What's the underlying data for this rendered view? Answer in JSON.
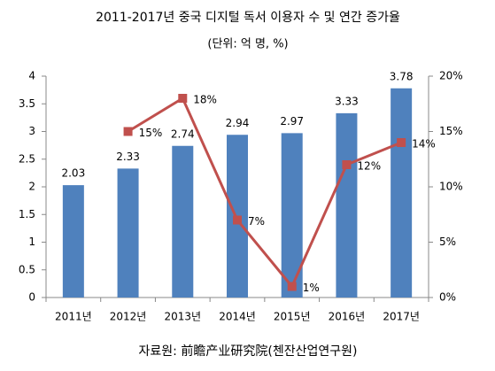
{
  "chart_data": {
    "type": "bar",
    "title": "2011-2017년 중국 디지털 독서 이용자 수 및 연간 증가율",
    "subtitle": "(단위: 억 명, %)",
    "source": "자료원: 前瞻产业研究院(첸잔산업연구원)",
    "categories": [
      "2011년",
      "2012년",
      "2013년",
      "2014년",
      "2015년",
      "2016년",
      "2017년"
    ],
    "series": [
      {
        "type": "bar",
        "color": "#4f81bd",
        "values": [
          2.03,
          2.33,
          2.74,
          2.94,
          2.97,
          3.33,
          3.78
        ]
      },
      {
        "type": "line",
        "axis": "y2",
        "color": "#c0504d",
        "values": [
          null,
          15,
          18,
          7,
          1,
          12,
          14
        ],
        "value_labels": [
          null,
          "15%",
          "18%",
          "7%",
          "1%",
          "12%",
          "14%"
        ]
      }
    ],
    "ylim": [
      0,
      4
    ],
    "yticks": [
      0,
      0.5,
      1,
      1.5,
      2,
      2.5,
      3,
      3.5,
      4
    ],
    "y2lim": [
      0,
      20
    ],
    "y2ticks": [
      {
        "value": 0,
        "label": "0%"
      },
      {
        "value": 5,
        "label": "5%"
      },
      {
        "value": 10,
        "label": "10%"
      },
      {
        "value": 15,
        "label": "15%"
      },
      {
        "value": 20,
        "label": "20%"
      }
    ]
  }
}
